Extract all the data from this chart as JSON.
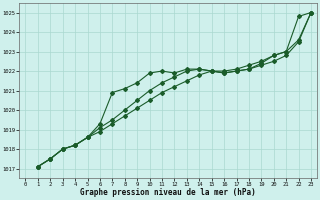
{
  "title": "Graphe pression niveau de la mer (hPa)",
  "bg_color": "#cff0ec",
  "grid_color": "#aad8d0",
  "line_color": "#1a5c2a",
  "xlim": [
    -0.5,
    23.5
  ],
  "ylim": [
    1016.5,
    1025.5
  ],
  "yticks": [
    1017,
    1018,
    1019,
    1020,
    1021,
    1022,
    1023,
    1024,
    1025
  ],
  "xticks": [
    0,
    1,
    2,
    3,
    4,
    5,
    6,
    7,
    8,
    9,
    10,
    11,
    12,
    13,
    14,
    15,
    16,
    17,
    18,
    19,
    20,
    21,
    22,
    23
  ],
  "series": [
    [
      1017.1,
      1017.5,
      1018.0,
      1018.2,
      1018.6,
      1019.3,
      1020.9,
      1021.0,
      1021.4,
      1021.9,
      1021.9,
      1022.0,
      1022.1,
      1022.1,
      1021.9,
      1021.9,
      1022.1,
      1022.2,
      1022.5,
      1022.9,
      1023.0,
      1024.8,
      1025.0
    ],
    [
      1017.1,
      1017.5,
      1018.0,
      1018.2,
      1018.6,
      1019.0,
      1019.4,
      1019.8,
      1020.3,
      1020.8,
      1021.2,
      1021.5,
      1021.9,
      1022.2,
      1022.2,
      1022.1,
      1022.1,
      1022.2,
      1022.5,
      1022.8,
      1023.0,
      1023.6,
      1025.0
    ],
    [
      1017.1,
      1017.5,
      1018.0,
      1018.2,
      1018.6,
      1019.0,
      1019.3,
      1019.7,
      1020.1,
      1020.5,
      1020.9,
      1021.2,
      1021.5,
      1021.8,
      1022.0,
      1021.9,
      1022.0,
      1022.1,
      1022.3,
      1022.6,
      1022.9,
      1023.5,
      1025.0
    ]
  ],
  "figsize": [
    3.2,
    2.0
  ],
  "dpi": 100
}
